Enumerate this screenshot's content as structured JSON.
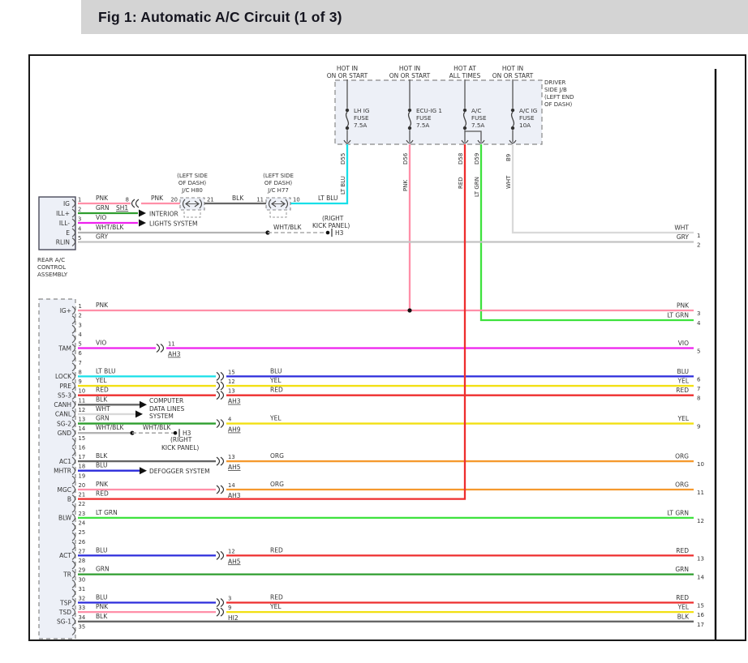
{
  "header": {
    "title": "Fig 1: Automatic A/C Circuit (1 of 3)"
  },
  "palette": {
    "PNK": "#ff8fa8",
    "RED": "#ee2e2e",
    "GRN": "#2f9e2f",
    "LT GRN": "#3de23d",
    "VIO": "#ee22ee",
    "LT BLU": "#18dfe8",
    "BLU": "#2c2cdc",
    "YEL": "#f2e013",
    "ORG": "#f5992e",
    "BLK": "#666666",
    "WHT": "#d9d9d9",
    "GRY": "#c3c3c3",
    "WHT/BLK": "#b3b3b3"
  },
  "fuse_panel": {
    "jb_label": [
      "DRIVER",
      "SIDE J/B",
      "(LEFT END",
      "OF DASH)"
    ],
    "feeds": [
      {
        "feed": [
          "HOT IN",
          "ON OR START"
        ],
        "fuse": [
          "LH IG",
          "FUSE",
          "7.5A"
        ],
        "outputs": [
          {
            "id": "D55",
            "wire": "LT BLU"
          }
        ]
      },
      {
        "feed": [
          "HOT IN",
          "ON OR START"
        ],
        "fuse": [
          "ECU-IG 1",
          "FUSE",
          "7.5A"
        ],
        "outputs": [
          {
            "id": "D56",
            "wire": "PNK"
          }
        ]
      },
      {
        "feed": [
          "HOT AT",
          "ALL TIMES"
        ],
        "fuse": [
          "A/C",
          "FUSE",
          "7.5A"
        ],
        "outputs": [
          {
            "id": "D58",
            "wire": "RED"
          },
          {
            "id": "D59",
            "wire": "LT GRN"
          }
        ]
      },
      {
        "feed": [
          "HOT IN",
          "ON OR START"
        ],
        "fuse": [
          "A/C IG",
          "FUSE",
          "10A"
        ],
        "outputs": [
          {
            "id": "B9",
            "wire": "WHT"
          }
        ]
      }
    ]
  },
  "rear_assembly": {
    "name": [
      "REAR A/C",
      "CONTROL",
      "ASSEMBLY"
    ],
    "pins": [
      {
        "num": "1",
        "name": "IG"
      },
      {
        "num": "2",
        "name": "ILL+"
      },
      {
        "num": "3",
        "name": "ILL-"
      },
      {
        "num": "4",
        "name": "E"
      },
      {
        "num": "5",
        "name": "RLIN"
      }
    ]
  },
  "ig_circuit": {
    "seg1_wire": "PNK",
    "splice_pin": "8",
    "seg2_wire": "PNK",
    "jc1": {
      "pin_in": "20",
      "pin_out": "21",
      "label": [
        "(LEFT SIDE",
        "OF DASH)",
        "J/C H80"
      ]
    },
    "seg3_wire": "BLK",
    "jc2": {
      "pin_in": "11",
      "pin_out": "10",
      "label": [
        "(LEFT SIDE",
        "OF DASH)",
        "J/C H77"
      ]
    },
    "seg4_wire": "LT BLU"
  },
  "ill_circuit": {
    "plus_wire": "GRN",
    "ref": "SH1",
    "minus_wire": "VIO"
  },
  "e_circuit": {
    "wire": "WHT/BLK",
    "wire2": "WHT/BLK",
    "ground": "H3",
    "note": [
      "(RIGHT",
      "KICK PANEL)"
    ]
  },
  "rlin_circuit": {
    "wire": "GRY"
  },
  "system_labels": {
    "interior": [
      "INTERIOR",
      "LIGHTS SYSTEM"
    ],
    "computer": [
      "COMPUTER",
      "DATA LINES",
      "SYSTEM"
    ],
    "defogger": [
      "DEFOGGER SYSTEM"
    ]
  },
  "h3_ground": {
    "wire_label": "WHT/BLK",
    "ref": "H3",
    "note": [
      "(RIGHT",
      "KICK PANEL)"
    ]
  },
  "main_connector": {
    "pin_count": 35,
    "rows": [
      {
        "pin": "1",
        "name": "IG+",
        "wire": "PNK",
        "right_pin": "3"
      },
      {
        "pin": "5",
        "name": "TAM",
        "wire": "VIO",
        "mid_pin": "11",
        "mid_ref": "AH3",
        "right_wire": "VIO",
        "right_pin": "5"
      },
      {
        "pin": "8",
        "name": "LOCK",
        "wire": "LT BLU",
        "mid_pin": "15",
        "right_wire": "BLU",
        "right_pin": "6"
      },
      {
        "pin": "9",
        "name": "PRE",
        "wire": "YEL",
        "mid_pin": "12",
        "right_wire": "YEL",
        "right_pin": "7"
      },
      {
        "pin": "10",
        "name": "S5-3",
        "wire": "RED",
        "mid_pin": "13",
        "mid_ref": "AH3",
        "right_wire": "RED",
        "right_pin": "8"
      },
      {
        "pin": "11",
        "name": "CANH",
        "wire": "BLK",
        "dest": "computer"
      },
      {
        "pin": "12",
        "name": "CANL",
        "wire": "WHT"
      },
      {
        "pin": "13",
        "name": "SG-2",
        "wire": "GRN",
        "mid_pin": "4",
        "mid_ref": "AH9",
        "right_wire": "YEL",
        "right_pin": "9"
      },
      {
        "pin": "14",
        "name": "GND",
        "wire": "WHT/BLK",
        "dest": "ground"
      },
      {
        "pin": "17",
        "name": "AC1",
        "wire": "BLK",
        "mid_pin": "13",
        "mid_ref": "AH5",
        "right_wire": "ORG",
        "right_pin": "10"
      },
      {
        "pin": "18",
        "name": "MHTR",
        "wire": "BLU",
        "dest": "defogger"
      },
      {
        "pin": "20",
        "name": "MGC",
        "wire": "PNK",
        "mid_pin": "14",
        "mid_ref": "AH3",
        "right_wire": "ORG",
        "right_pin": "11"
      },
      {
        "pin": "21",
        "name": "B",
        "wire": "RED"
      },
      {
        "pin": "23",
        "name": "BLW",
        "wire": "LT GRN",
        "right_pin": "12"
      },
      {
        "pin": "27",
        "name": "ACT",
        "wire": "BLU",
        "mid_pin": "12",
        "mid_ref": "AH5",
        "right_wire": "RED",
        "right_pin": "13"
      },
      {
        "pin": "29",
        "name": "TR",
        "wire": "GRN",
        "right_pin": "14"
      },
      {
        "pin": "32",
        "name": "TSP",
        "wire": "BLU",
        "mid_pin": "3",
        "right_wire": "RED",
        "right_pin": "15"
      },
      {
        "pin": "33",
        "name": "TSD",
        "wire": "PNK",
        "mid_pin": "9",
        "mid_ref": "HI2",
        "right_wire": "YEL",
        "right_pin": "16"
      },
      {
        "pin": "34",
        "name": "SG-1",
        "wire": "BLK",
        "right_pin": "17"
      }
    ]
  },
  "right_connector": {
    "pins": [
      {
        "num": "1",
        "wire": "WHT"
      },
      {
        "num": "2",
        "wire": "GRY"
      },
      {
        "num": "3",
        "wire": "PNK"
      },
      {
        "num": "4",
        "wire": "LT GRN"
      },
      {
        "num": "5",
        "wire": "VIO"
      },
      {
        "num": "6",
        "wire": "BLU"
      },
      {
        "num": "7",
        "wire": "YEL"
      },
      {
        "num": "8",
        "wire": "RED"
      },
      {
        "num": "9",
        "wire": "YEL"
      },
      {
        "num": "10",
        "wire": "ORG"
      },
      {
        "num": "11",
        "wire": "ORG"
      },
      {
        "num": "12",
        "wire": "LT GRN"
      },
      {
        "num": "13",
        "wire": "RED"
      },
      {
        "num": "14",
        "wire": "GRN"
      },
      {
        "num": "15",
        "wire": "RED"
      },
      {
        "num": "16",
        "wire": "YEL"
      },
      {
        "num": "17",
        "wire": "BLK"
      }
    ]
  }
}
